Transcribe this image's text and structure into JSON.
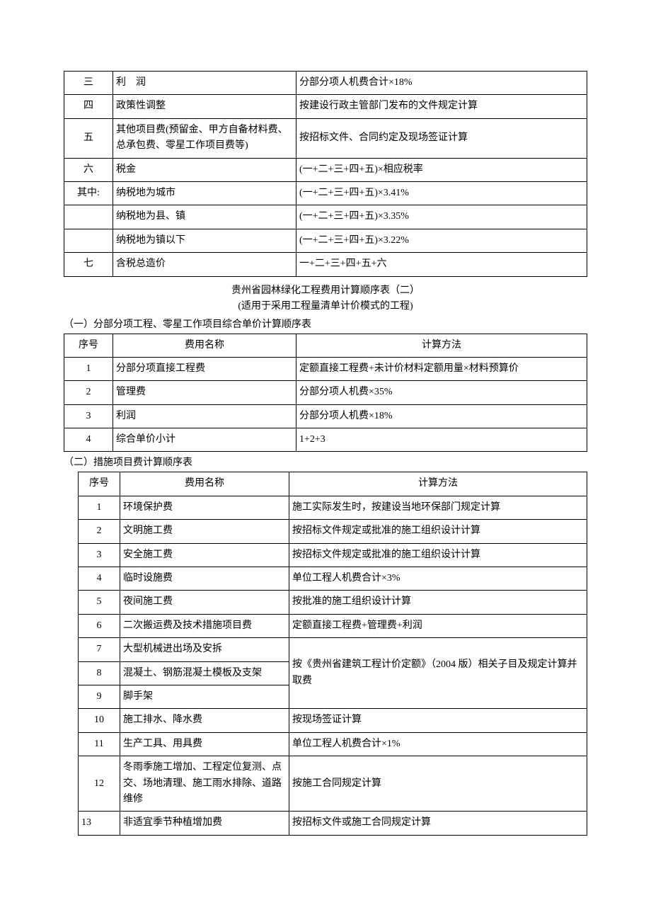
{
  "table1": {
    "rows": [
      {
        "num": "三",
        "name": "利　润",
        "method": "分部分项人机费合计×18%"
      },
      {
        "num": "四",
        "name": "政策性调整",
        "method": "按建设行政主管部门发布的文件规定计算"
      },
      {
        "num": "五",
        "name": "其他项目费(预留金、甲方自备材料费、总承包费、零星工作项目费等)",
        "method": "按招标文件、合同约定及现场签证计算"
      },
      {
        "num": "六",
        "name": "税金",
        "method": "(一+二+三+四+五)×相应税率"
      },
      {
        "num": "其中:",
        "name": "纳税地为城市",
        "method": "(一+二+三+四+五)×3.41%"
      },
      {
        "num": "",
        "name": "纳税地为县、镇",
        "method": "(一+二+三+四+五)×3.35%"
      },
      {
        "num": "",
        "name": "纳税地为镇以下",
        "method": "(一+二+三+四+五)×3.22%"
      },
      {
        "num": "七",
        "name": "含税总造价",
        "method": "一+二+三+四+五+六"
      }
    ]
  },
  "heading2": "贵州省园林绿化工程费用计算顺序表（二）",
  "subheading2": "(适用于采用工程量清单计价模式的工程)",
  "section1_label": "（一）分部分项工程、零星工作项目综合单价计算顺序表",
  "table2": {
    "headers": {
      "num": "序号",
      "name": "费用名称",
      "method": "计算方法"
    },
    "rows": [
      {
        "num": "1",
        "name": "分部分项直接工程费",
        "method": "定额直接工程费+未计价材料定额用量×材料预算价"
      },
      {
        "num": "2",
        "name": "管理费",
        "method": "分部分项人机费×35%"
      },
      {
        "num": "3",
        "name": "利润",
        "method": "分部分项人机费×18%"
      },
      {
        "num": "4",
        "name": "综合单价小计",
        "method": "1+2+3"
      }
    ]
  },
  "section2_label": "（二）措施项目费计算顺序表",
  "table3": {
    "headers": {
      "num": "序号",
      "name": "费用名称",
      "method": "计算方法"
    },
    "rows": [
      {
        "num": "1",
        "name": "环境保护费",
        "method": "施工实际发生时，按建设当地环保部门规定计算"
      },
      {
        "num": "2",
        "name": "文明施工费",
        "method": "按招标文件规定或批准的施工组织设计计算"
      },
      {
        "num": "3",
        "name": "安全施工费",
        "method": "按招标文件规定或批准的施工组织设计计算"
      },
      {
        "num": "4",
        "name": "临时设施费",
        "method": "单位工程人机费合计×3%"
      },
      {
        "num": "5",
        "name": "夜间施工费",
        "method": "按批准的施工组织设计计算"
      },
      {
        "num": "6",
        "name": "二次搬运费及技术措施项目费",
        "method": "定额直接工程费+管理费+利润"
      },
      {
        "num": "7",
        "name": "大型机械进出场及安拆",
        "method": ""
      },
      {
        "num": "8",
        "name": "混凝土、钢筋混凝土模板及支架",
        "method": ""
      },
      {
        "num": "9",
        "name": "脚手架",
        "method": ""
      },
      {
        "num": "10",
        "name": "施工排水、降水费",
        "method": "按现场签证计算"
      },
      {
        "num": "11",
        "name": "生产工具、用具费",
        "method": "单位工程人机费合计×1%"
      },
      {
        "num": "12",
        "name": "冬雨季施工增加、工程定位复测、点交、场地清理、施工雨水排除、道路维修",
        "method": "按施工合同规定计算"
      },
      {
        "num": "13",
        "name": "非适宜季节种植增加费",
        "method": "按招标文件或施工合同规定计算"
      }
    ],
    "merged_method_789": "按《贵州省建筑工程计价定额》（2004 版）相关子目及规定计算并取费"
  }
}
